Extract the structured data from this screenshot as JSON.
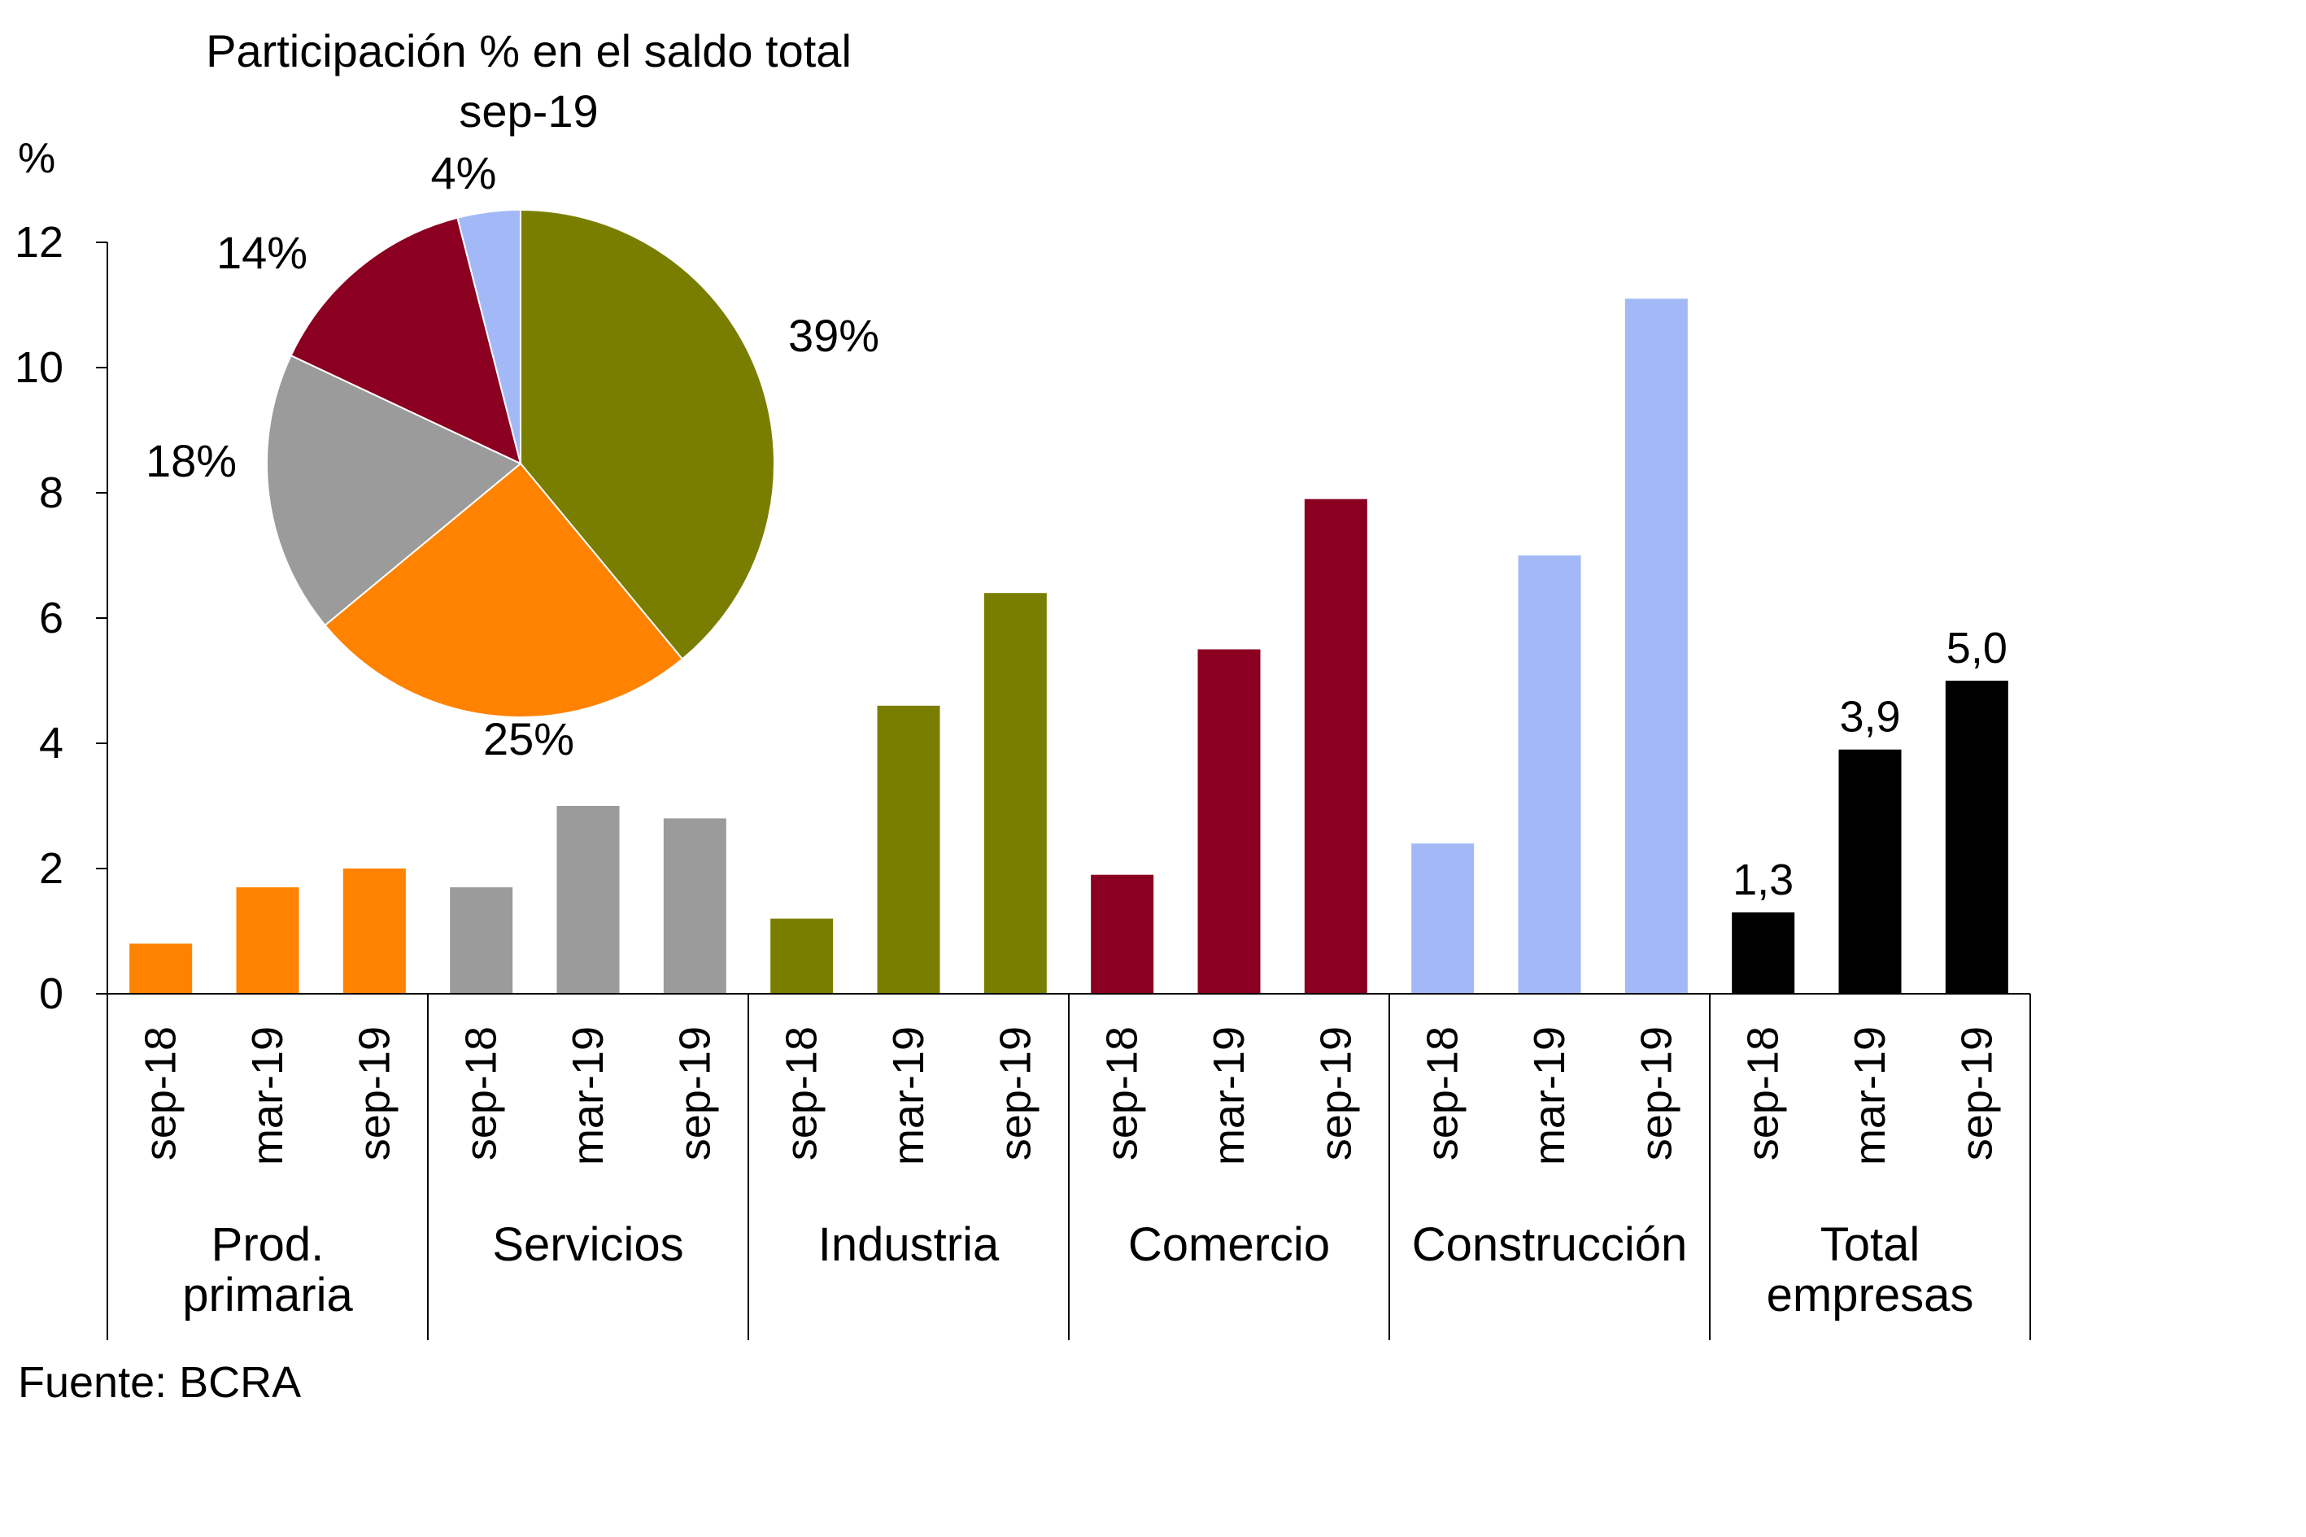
{
  "chart_data": [
    {
      "type": "bar",
      "ylabel": "%",
      "ylim": [
        0,
        12
      ],
      "yticks": [
        "0",
        "2",
        "4",
        "6",
        "8",
        "10",
        "12"
      ],
      "grid": false,
      "groups": [
        {
          "label": "Prod. primaria",
          "label_lines": [
            "Prod.",
            "primaria"
          ],
          "color": "#FF8200",
          "periods": [
            "sep-18",
            "mar-19",
            "sep-19"
          ],
          "values": [
            0.8,
            1.7,
            2.0
          ]
        },
        {
          "label": "Servicios",
          "label_lines": [
            "Servicios"
          ],
          "color": "#9B9B9B",
          "periods": [
            "sep-18",
            "mar-19",
            "sep-19"
          ],
          "values": [
            1.7,
            3.0,
            2.8
          ]
        },
        {
          "label": "Industria",
          "label_lines": [
            "Industria"
          ],
          "color": "#7A7E00",
          "periods": [
            "sep-18",
            "mar-19",
            "sep-19"
          ],
          "values": [
            1.2,
            4.6,
            6.4
          ]
        },
        {
          "label": "Comercio",
          "label_lines": [
            "Comercio"
          ],
          "color": "#8B0020",
          "periods": [
            "sep-18",
            "mar-19",
            "sep-19"
          ],
          "values": [
            1.9,
            5.5,
            7.9
          ]
        },
        {
          "label": "Construcción",
          "label_lines": [
            "Construcción"
          ],
          "color": "#A3B9F7",
          "periods": [
            "sep-18",
            "mar-19",
            "sep-19"
          ],
          "values": [
            2.4,
            7.0,
            11.1
          ]
        },
        {
          "label": "Total empresas",
          "label_lines": [
            "Total",
            "empresas"
          ],
          "color": "#000000",
          "periods": [
            "sep-18",
            "mar-19",
            "sep-19"
          ],
          "values": [
            1.3,
            3.9,
            5.0
          ],
          "data_labels": [
            "1,3",
            "3,9",
            "5,0"
          ]
        }
      ]
    },
    {
      "type": "pie",
      "title_lines": [
        "Participación % en el saldo total",
        "sep-19"
      ],
      "slices": [
        {
          "category": "Industria",
          "value": 39,
          "label": "39%",
          "color": "#7A7E00"
        },
        {
          "category": "Prod. primaria",
          "value": 25,
          "label": "25%",
          "color": "#FF8200"
        },
        {
          "category": "Servicios",
          "value": 18,
          "label": "18%",
          "color": "#9B9B9B"
        },
        {
          "category": "Comercio",
          "value": 14,
          "label": "14%",
          "color": "#8B0020"
        },
        {
          "category": "Construcción",
          "value": 4,
          "label": "4%",
          "color": "#A3B9F7"
        }
      ]
    }
  ],
  "source": "Fuente: BCRA"
}
